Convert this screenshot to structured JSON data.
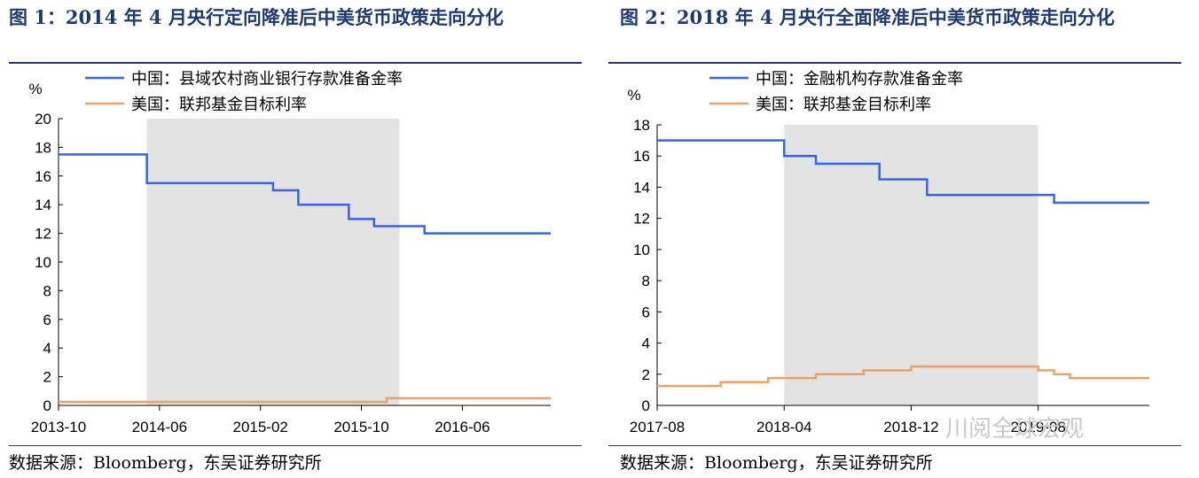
{
  "panels": [
    {
      "title": "图 1：2014 年 4 月央行定向降准后中美货币政策走向分化",
      "source": "数据来源：Bloomberg，东吴证券研究所"
    },
    {
      "title": "图 2：2018 年 4 月央行全面降准后中美货币政策走向分化",
      "source": "数据来源：Bloomberg，东吴证券研究所"
    }
  ],
  "watermark": "川阅全球宏观",
  "colors": {
    "china": "#3366e0",
    "us": "#f0a060",
    "shade": "#e3e3e3",
    "axis": "#000000"
  },
  "chart_data": [
    {
      "type": "line",
      "ylabel": "%",
      "ylim": [
        0,
        20
      ],
      "yticks": [
        0,
        2,
        4,
        6,
        8,
        10,
        12,
        14,
        16,
        18,
        20
      ],
      "xticks": [
        "2013-10",
        "2014-06",
        "2015-02",
        "2015-10",
        "2016-06"
      ],
      "xrange": [
        "2013-10",
        "2017-01"
      ],
      "shaded": [
        "2014-05",
        "2016-01"
      ],
      "legend_position": "top-center",
      "series": [
        {
          "name": "中国：县域农村商业银行存款准备金率",
          "color": "#3366e0",
          "step": true,
          "points": [
            [
              "2013-10",
              17.5
            ],
            [
              "2014-05",
              15.5
            ],
            [
              "2015-03",
              15.0
            ],
            [
              "2015-05",
              14.0
            ],
            [
              "2015-09",
              13.0
            ],
            [
              "2015-11",
              12.5
            ],
            [
              "2016-03",
              12.0
            ],
            [
              "2017-01",
              12.0
            ]
          ]
        },
        {
          "name": "美国：联邦基金目标利率",
          "color": "#f0a060",
          "step": true,
          "points": [
            [
              "2013-10",
              0.25
            ],
            [
              "2015-12",
              0.5
            ],
            [
              "2017-01",
              0.5
            ]
          ]
        }
      ]
    },
    {
      "type": "line",
      "ylabel": "%",
      "ylim": [
        0,
        18
      ],
      "yticks": [
        0,
        2,
        4,
        6,
        8,
        10,
        12,
        14,
        16,
        18
      ],
      "xticks": [
        "2017-08",
        "2018-04",
        "2018-12",
        "2019-08"
      ],
      "xrange": [
        "2017-08",
        "2020-03"
      ],
      "shaded": [
        "2018-04",
        "2019-08"
      ],
      "legend_position": "top-center",
      "series": [
        {
          "name": "中国：金融机构存款准备金率",
          "color": "#3366e0",
          "step": true,
          "points": [
            [
              "2017-08",
              17.0
            ],
            [
              "2018-04",
              16.0
            ],
            [
              "2018-06",
              15.5
            ],
            [
              "2018-10",
              14.5
            ],
            [
              "2019-01",
              13.5
            ],
            [
              "2019-09",
              13.0
            ],
            [
              "2020-03",
              13.0
            ]
          ]
        },
        {
          "name": "美国：联邦基金目标利率",
          "color": "#f0a060",
          "step": true,
          "points": [
            [
              "2017-08",
              1.25
            ],
            [
              "2017-12",
              1.5
            ],
            [
              "2018-03",
              1.75
            ],
            [
              "2018-06",
              2.0
            ],
            [
              "2018-09",
              2.25
            ],
            [
              "2018-12",
              2.5
            ],
            [
              "2019-08",
              2.25
            ],
            [
              "2019-09",
              2.0
            ],
            [
              "2019-10",
              1.75
            ],
            [
              "2020-03",
              1.75
            ]
          ]
        }
      ]
    }
  ]
}
